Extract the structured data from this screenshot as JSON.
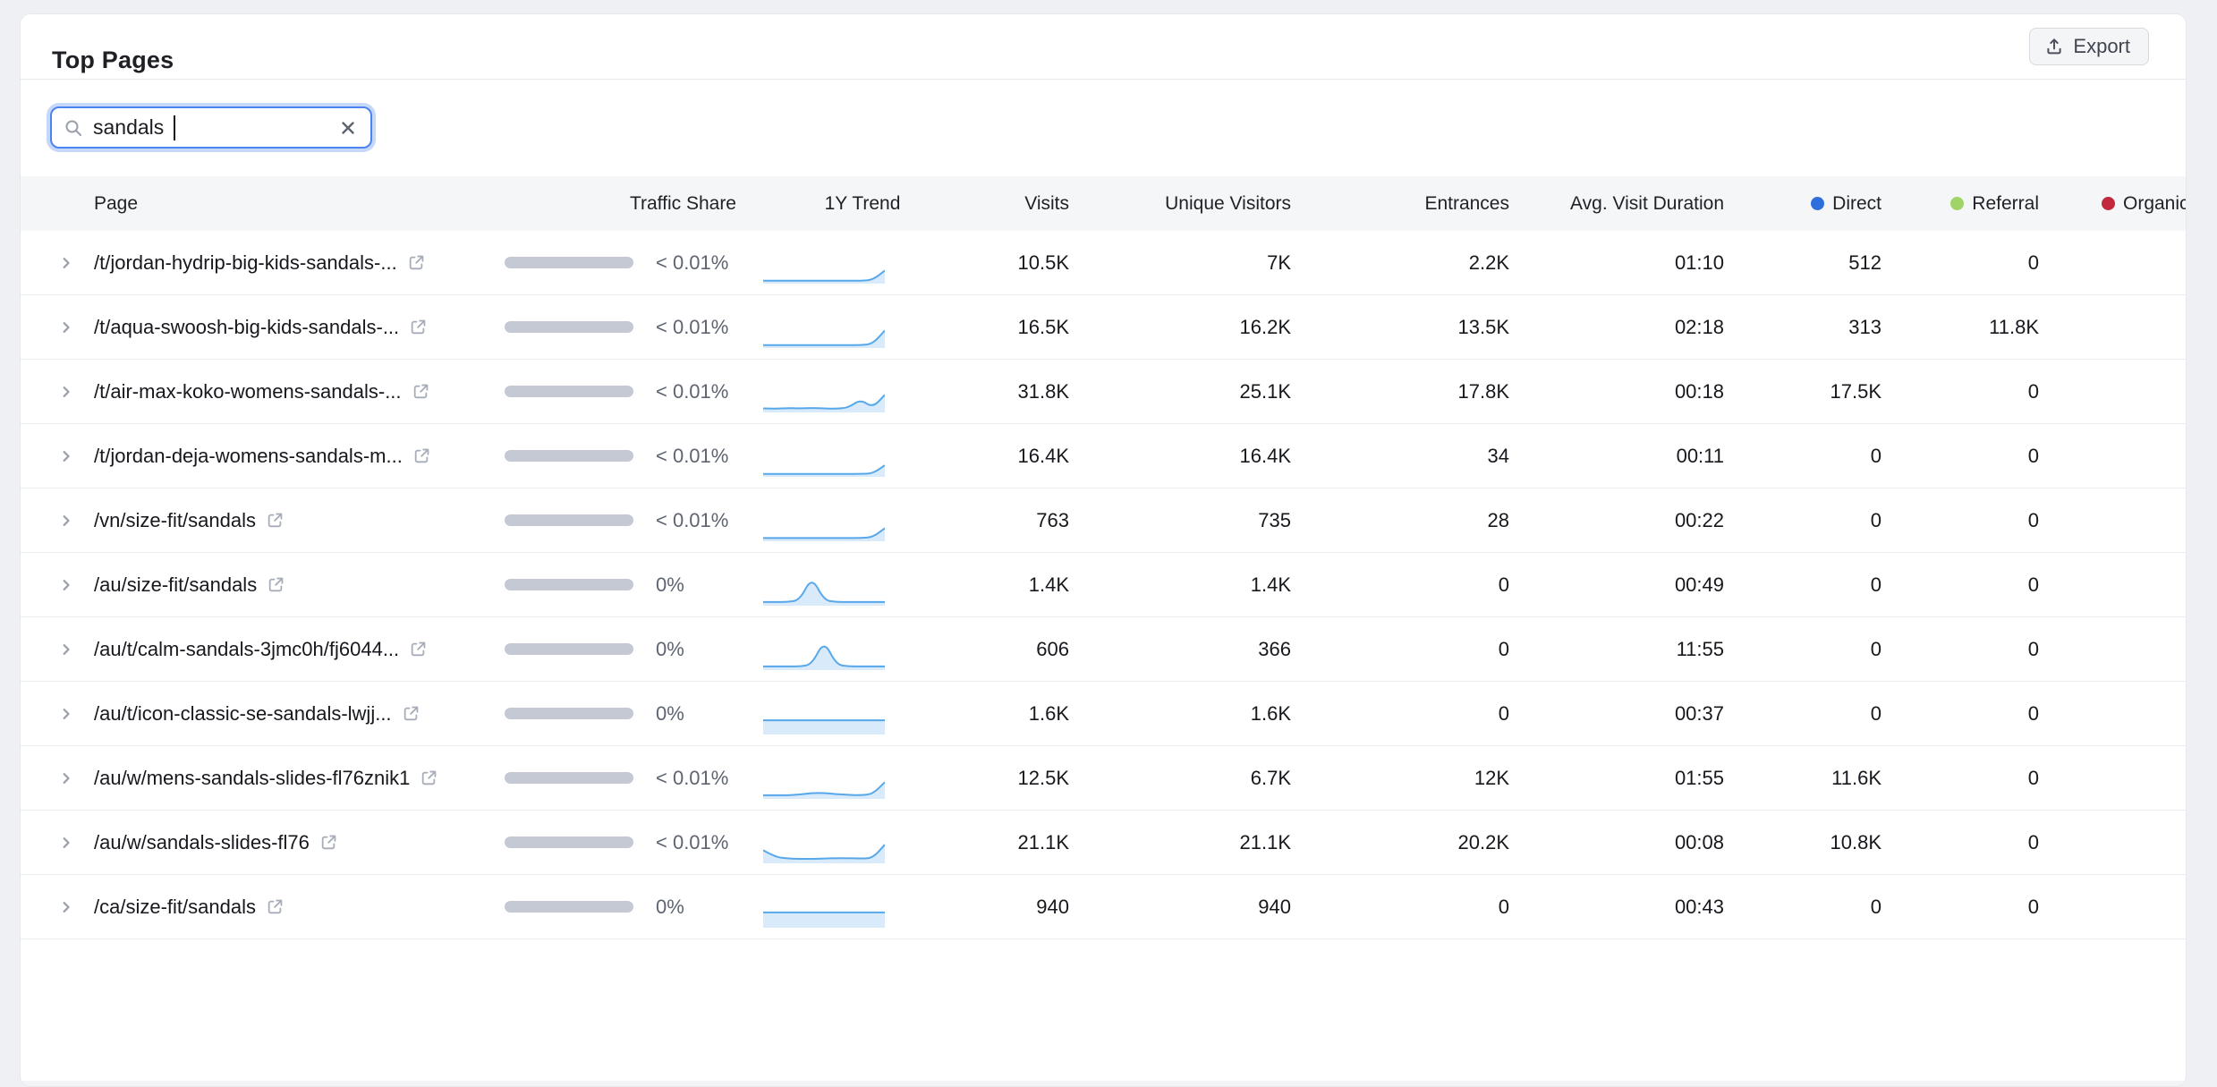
{
  "title": "Top Pages",
  "export_label": "Export",
  "search": {
    "value": "sandals"
  },
  "colors": {
    "direct": "#2e6fdb",
    "referral": "#a0d468",
    "organic": "#c2293c",
    "spark_line": "#57a8ea",
    "spark_fill": "#d9ebfb",
    "bar_track": "#c4c9d3",
    "search_focus_border": "#4d83ef"
  },
  "table": {
    "columns": {
      "page": "Page",
      "traffic_share": "Traffic Share",
      "trend": "1Y Trend",
      "visits": "Visits",
      "unique_visitors": "Unique Visitors",
      "entrances": "Entrances",
      "avg_visit_duration": "Avg. Visit Duration",
      "direct": "Direct",
      "referral": "Referral",
      "organic": "Organic"
    },
    "rows": [
      {
        "page": "/t/jordan-hydrip-big-kids-sandals-...",
        "traffic_share": "< 0.01%",
        "visits": "10.5K",
        "unique_visitors": "7K",
        "entrances": "2.2K",
        "avg_visit_duration": "01:10",
        "direct": "512",
        "referral": "0",
        "trend": [
          3,
          3,
          3,
          3,
          3,
          3,
          3,
          3,
          3,
          5,
          30
        ]
      },
      {
        "page": "/t/aqua-swoosh-big-kids-sandals-...",
        "traffic_share": "< 0.01%",
        "visits": "16.5K",
        "unique_visitors": "16.2K",
        "entrances": "13.5K",
        "avg_visit_duration": "02:18",
        "direct": "313",
        "referral": "11.8K",
        "trend": [
          3,
          3,
          3,
          3,
          3,
          3,
          3,
          3,
          3,
          6,
          42
        ]
      },
      {
        "page": "/t/air-max-koko-womens-sandals-...",
        "traffic_share": "< 0.01%",
        "visits": "31.8K",
        "unique_visitors": "25.1K",
        "entrances": "17.8K",
        "avg_visit_duration": "00:18",
        "direct": "17.5K",
        "referral": "0",
        "trend": [
          6,
          5,
          7,
          6,
          7,
          6,
          5,
          8,
          30,
          8,
          42
        ]
      },
      {
        "page": "/t/jordan-deja-womens-sandals-m...",
        "traffic_share": "< 0.01%",
        "visits": "16.4K",
        "unique_visitors": "16.4K",
        "entrances": "34",
        "avg_visit_duration": "00:11",
        "direct": "0",
        "referral": "0",
        "trend": [
          3,
          3,
          3,
          3,
          3,
          3,
          3,
          3,
          3,
          4,
          26
        ]
      },
      {
        "page": "/vn/size-fit/sandals",
        "traffic_share": "< 0.01%",
        "visits": "763",
        "unique_visitors": "735",
        "entrances": "28",
        "avg_visit_duration": "00:22",
        "direct": "0",
        "referral": "0",
        "trend": [
          4,
          4,
          4,
          4,
          4,
          4,
          4,
          4,
          4,
          6,
          30
        ]
      },
      {
        "page": "/au/size-fit/sandals",
        "traffic_share": "0%",
        "visits": "1.4K",
        "unique_visitors": "1.4K",
        "entrances": "0",
        "avg_visit_duration": "00:49",
        "direct": "0",
        "referral": "0",
        "trend": [
          5,
          5,
          5,
          10,
          72,
          10,
          5,
          5,
          5,
          5,
          5
        ]
      },
      {
        "page": "/au/t/calm-sandals-3jmc0h/fj6044...",
        "traffic_share": "0%",
        "visits": "606",
        "unique_visitors": "366",
        "entrances": "0",
        "avg_visit_duration": "11:55",
        "direct": "0",
        "referral": "0",
        "trend": [
          5,
          5,
          5,
          5,
          10,
          74,
          10,
          5,
          5,
          5,
          5
        ]
      },
      {
        "page": "/au/t/icon-classic-se-sandals-lwjj...",
        "traffic_share": "0%",
        "visits": "1.6K",
        "unique_visitors": "1.6K",
        "entrances": "0",
        "avg_visit_duration": "00:37",
        "direct": "0",
        "referral": "0",
        "trend": [
          33,
          33,
          33,
          33,
          33,
          33,
          33,
          33,
          33,
          33,
          33
        ]
      },
      {
        "page": "/au/w/mens-sandals-slides-fl76znik1",
        "traffic_share": "< 0.01%",
        "visits": "12.5K",
        "unique_visitors": "6.7K",
        "entrances": "12K",
        "avg_visit_duration": "01:55",
        "direct": "11.6K",
        "referral": "0",
        "trend": [
          5,
          5,
          5,
          7,
          11,
          11,
          8,
          6,
          5,
          8,
          40
        ]
      },
      {
        "page": "/au/w/sandals-slides-fl76",
        "traffic_share": "< 0.01%",
        "visits": "21.1K",
        "unique_visitors": "21.1K",
        "entrances": "20.2K",
        "avg_visit_duration": "00:08",
        "direct": "10.8K",
        "referral": "0",
        "trend": [
          30,
          12,
          8,
          7,
          7,
          8,
          9,
          9,
          8,
          9,
          45
        ]
      },
      {
        "page": "/ca/size-fit/sandals",
        "traffic_share": "0%",
        "visits": "940",
        "unique_visitors": "940",
        "entrances": "0",
        "avg_visit_duration": "00:43",
        "direct": "0",
        "referral": "0",
        "trend": [
          36,
          36,
          36,
          36,
          36,
          36,
          36,
          36,
          36,
          36,
          36
        ]
      }
    ]
  }
}
